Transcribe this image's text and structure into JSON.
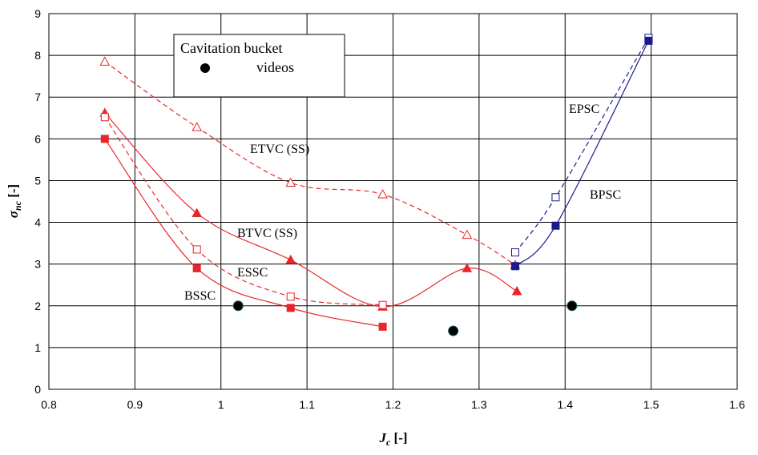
{
  "chart_data": {
    "type": "scatter",
    "title": "",
    "xlabel_main": "J",
    "xlabel_sub": "c",
    "xlabel_unit": " [-]",
    "ylabel_main": "σ",
    "ylabel_sub": "nc",
    "ylabel_unit": " [-]",
    "xlim": [
      0.8,
      1.6
    ],
    "ylim": [
      0,
      9
    ],
    "xticks": [
      "0.8",
      "0.9",
      "1",
      "1.1",
      "1.2",
      "1.3",
      "1.4",
      "1.5",
      "1.6"
    ],
    "yticks": [
      "0",
      "1",
      "2",
      "3",
      "4",
      "5",
      "6",
      "7",
      "8",
      "9"
    ],
    "grid": true,
    "legend": {
      "position": "top-left",
      "line1": "Cavitation bucket",
      "line2": "videos"
    },
    "series": [
      {
        "name": "ETVC (SS)",
        "color": "#e8262a",
        "marker": "triangle-open",
        "dash": true,
        "x": [
          0.865,
          0.972,
          1.081,
          1.188,
          1.286,
          1.342
        ],
        "y": [
          7.85,
          6.28,
          4.95,
          4.67,
          3.7,
          2.98
        ]
      },
      {
        "name": "BTVC (SS)",
        "color": "#e8262a",
        "marker": "triangle-filled",
        "dash": false,
        "x": [
          0.865,
          0.972,
          1.081,
          1.188,
          1.286,
          1.344
        ],
        "y": [
          6.62,
          4.22,
          3.1,
          1.98,
          2.9,
          2.35
        ]
      },
      {
        "name": "ESSC",
        "color": "#e8262a",
        "marker": "square-open",
        "dash": true,
        "x": [
          0.865,
          0.972,
          1.081,
          1.188
        ],
        "y": [
          6.52,
          3.35,
          2.22,
          2.02
        ]
      },
      {
        "name": "BSSC",
        "color": "#e8262a",
        "marker": "square-filled",
        "dash": false,
        "x": [
          0.865,
          0.972,
          1.081,
          1.188
        ],
        "y": [
          6.0,
          2.9,
          1.95,
          1.5
        ]
      },
      {
        "name": "EPSC",
        "color": "#1a1a8c",
        "marker": "square-open",
        "dash": true,
        "x": [
          1.342,
          1.389,
          1.497
        ],
        "y": [
          3.28,
          4.6,
          8.42
        ]
      },
      {
        "name": "BPSC",
        "color": "#1a1a8c",
        "marker": "square-filled",
        "dash": false,
        "x": [
          1.342,
          1.389,
          1.497
        ],
        "y": [
          2.95,
          3.92,
          8.35
        ]
      },
      {
        "name": "Cavitation bucket videos",
        "color": "#000000",
        "marker": "circle",
        "line": false,
        "x": [
          1.02,
          1.27,
          1.408
        ],
        "y": [
          2.0,
          1.4,
          2.0
        ]
      }
    ]
  }
}
